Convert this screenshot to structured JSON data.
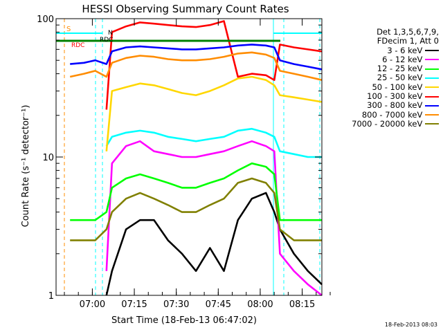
{
  "chart_data": {
    "type": "line",
    "title": "HESSI Observing Summary Count Rates",
    "xlabel": "Start Time (18-Feb-13 06:47:02)",
    "ylabel": "Count Rate (s⁻¹ detector⁻¹)",
    "yscale": "log",
    "ylim": [
      1,
      100
    ],
    "xlim_minutes": [
      "06:47",
      "08:22"
    ],
    "x_ticks": [
      "07:00",
      "07:15",
      "07:30",
      "07:45",
      "08:00",
      "08:15"
    ],
    "y_ticks": [
      "1",
      "10",
      "100"
    ],
    "legend_header": [
      "Det 1,3,5,6,7,9,",
      "FDecim 1, Att 0"
    ],
    "annotations": {
      "s_label": "S",
      "rdc_labels": [
        "RDC",
        "RDC",
        "N"
      ]
    },
    "x_minutes": [
      0,
      5,
      10,
      14,
      18,
      20,
      25,
      30,
      35,
      40,
      45,
      50,
      55,
      60,
      65,
      70,
      75,
      78,
      80,
      85,
      90,
      95
    ],
    "series": [
      {
        "name": "3 - 6 keV",
        "color": "#000000",
        "values": [
          null,
          null,
          null,
          null,
          1,
          1.5,
          3,
          3.5,
          3.5,
          2.5,
          2,
          1.5,
          2.2,
          1.5,
          3.5,
          5,
          5.5,
          4,
          3,
          2,
          1.5,
          1.2
        ]
      },
      {
        "name": "6 - 12 keV",
        "color": "#ff00ff",
        "values": [
          null,
          null,
          null,
          null,
          1.5,
          9,
          12,
          13,
          11,
          10.5,
          10,
          10,
          10.5,
          11,
          12,
          13,
          12,
          11,
          2,
          1.5,
          1.2,
          1
        ]
      },
      {
        "name": "12 - 25 keV",
        "color": "#00ff00",
        "values": [
          null,
          3.5,
          3.5,
          3.5,
          4,
          6,
          7,
          7.5,
          7,
          6.5,
          6,
          6,
          6.5,
          7,
          8,
          9,
          8.5,
          7.5,
          3.5,
          3.5,
          3.5,
          3.5
        ]
      },
      {
        "name": "25 - 50 keV",
        "color": "#00ffff",
        "values": [
          null,
          null,
          null,
          null,
          12,
          14,
          15,
          15.5,
          15,
          14,
          13.5,
          13,
          13.5,
          14,
          15.5,
          16,
          15,
          14,
          11,
          10.5,
          10,
          10
        ]
      },
      {
        "name": "50 - 100 keV",
        "color": "#ffd700",
        "values": [
          null,
          null,
          null,
          null,
          11,
          30,
          32,
          34,
          33,
          31,
          29,
          28,
          30,
          33,
          37,
          38,
          36,
          33,
          28,
          27,
          26,
          25
        ]
      },
      {
        "name": "100 - 300 keV",
        "color": "#ff0000",
        "values": [
          null,
          null,
          null,
          null,
          22,
          80,
          88,
          94,
          92,
          90,
          88,
          87,
          90,
          96,
          38,
          40,
          39,
          36,
          65,
          62,
          60,
          58
        ]
      },
      {
        "name": "300 - 800 keV",
        "color": "#0000ff",
        "values": [
          null,
          47,
          48,
          50,
          47,
          58,
          62,
          63,
          62,
          61,
          60,
          60,
          61,
          62,
          64,
          65,
          64,
          62,
          50,
          47,
          45,
          43
        ]
      },
      {
        "name": "800 - 7000 keV",
        "color": "#ff8c00",
        "values": [
          null,
          38,
          40,
          42,
          38,
          48,
          52,
          54,
          53,
          51,
          50,
          50,
          51,
          53,
          56,
          57,
          55,
          52,
          42,
          40,
          38,
          36
        ]
      },
      {
        "name": "7000 - 20000 keV",
        "color": "#808000",
        "values": [
          null,
          2.5,
          2.5,
          2.5,
          3,
          4,
          5,
          5.5,
          5,
          4.5,
          4,
          4,
          4.5,
          5,
          6.5,
          7,
          6.5,
          5.5,
          3,
          2.5,
          2.5,
          2.5
        ]
      }
    ]
  },
  "footer": {
    "timestamp": "18-Feb-2013 08:03"
  }
}
